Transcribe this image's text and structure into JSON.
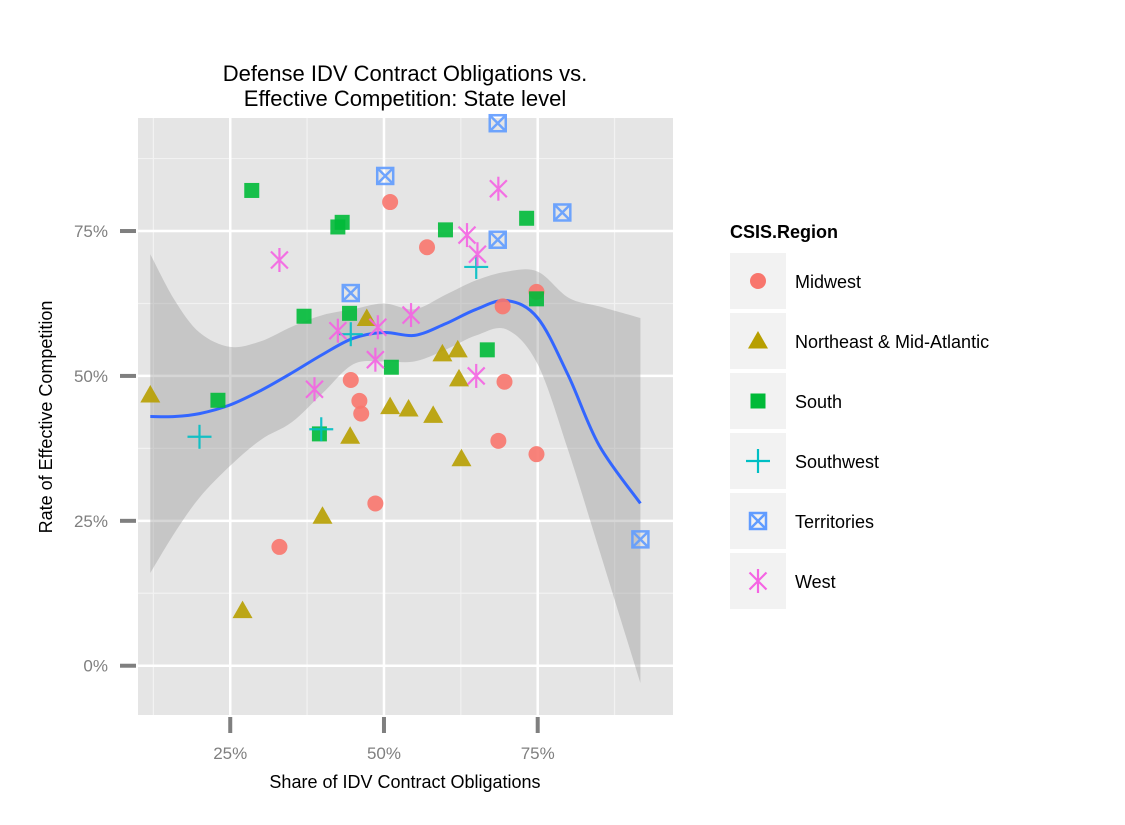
{
  "chart_data": {
    "type": "scatter",
    "title_lines": [
      "Defense IDV Contract Obligations vs.",
      "Effective Competition: State level"
    ],
    "xlabel": "Share of IDV Contract Obligations",
    "ylabel": "Rate of Effective Competition",
    "xlim": [
      0.1,
      0.97
    ],
    "ylim": [
      -0.085,
      0.945
    ],
    "x_ticks": [
      0.25,
      0.5,
      0.75
    ],
    "x_tick_labels": [
      "25%",
      "50%",
      "75%"
    ],
    "y_ticks": [
      0,
      0.25,
      0.5,
      0.75
    ],
    "y_tick_labels": [
      "0%",
      "25%",
      "50%",
      "75%"
    ],
    "grid": true,
    "legend": {
      "title": "CSIS.Region",
      "placement": "right",
      "entries": [
        {
          "name": "Midwest",
          "shape": "circle",
          "color": "#F8766D"
        },
        {
          "name": "Northeast & Mid-Atlantic",
          "shape": "triangle",
          "color": "#B79F00"
        },
        {
          "name": "South",
          "shape": "square",
          "color": "#00BA38"
        },
        {
          "name": "Southwest",
          "shape": "plus",
          "color": "#00BFC4"
        },
        {
          "name": "Territories",
          "shape": "boxx",
          "color": "#619CFF"
        },
        {
          "name": "West",
          "shape": "asterisk",
          "color": "#F564E3"
        }
      ]
    },
    "series": [
      {
        "name": "Midwest",
        "points": [
          [
            0.33,
            0.205
          ],
          [
            0.446,
            0.493
          ],
          [
            0.46,
            0.457
          ],
          [
            0.463,
            0.435
          ],
          [
            0.486,
            0.28
          ],
          [
            0.51,
            0.8
          ],
          [
            0.57,
            0.722
          ],
          [
            0.686,
            0.388
          ],
          [
            0.693,
            0.62
          ],
          [
            0.696,
            0.49
          ],
          [
            0.748,
            0.365
          ],
          [
            0.748,
            0.645
          ]
        ]
      },
      {
        "name": "Northeast & Mid-Atlantic",
        "points": [
          [
            0.12,
            0.467
          ],
          [
            0.27,
            0.095
          ],
          [
            0.4,
            0.258
          ],
          [
            0.445,
            0.396
          ],
          [
            0.472,
            0.599
          ],
          [
            0.51,
            0.447
          ],
          [
            0.54,
            0.443
          ],
          [
            0.58,
            0.432
          ],
          [
            0.595,
            0.538
          ],
          [
            0.62,
            0.545
          ],
          [
            0.622,
            0.495
          ],
          [
            0.626,
            0.357
          ]
        ]
      },
      {
        "name": "South",
        "points": [
          [
            0.23,
            0.458
          ],
          [
            0.285,
            0.82
          ],
          [
            0.37,
            0.603
          ],
          [
            0.395,
            0.4
          ],
          [
            0.425,
            0.757
          ],
          [
            0.432,
            0.765
          ],
          [
            0.444,
            0.608
          ],
          [
            0.512,
            0.515
          ],
          [
            0.6,
            0.752
          ],
          [
            0.668,
            0.545
          ],
          [
            0.732,
            0.772
          ],
          [
            0.748,
            0.633
          ]
        ]
      },
      {
        "name": "Southwest",
        "points": [
          [
            0.2,
            0.395
          ],
          [
            0.398,
            0.408
          ],
          [
            0.446,
            0.572
          ],
          [
            0.65,
            0.688
          ]
        ]
      },
      {
        "name": "Territories",
        "points": [
          [
            0.446,
            0.643
          ],
          [
            0.502,
            0.845
          ],
          [
            0.685,
            0.936
          ],
          [
            0.685,
            0.735
          ],
          [
            0.79,
            0.782
          ],
          [
            0.917,
            0.218
          ]
        ]
      },
      {
        "name": "West",
        "points": [
          [
            0.33,
            0.7
          ],
          [
            0.387,
            0.477
          ],
          [
            0.425,
            0.578
          ],
          [
            0.486,
            0.528
          ],
          [
            0.49,
            0.584
          ],
          [
            0.544,
            0.605
          ],
          [
            0.635,
            0.743
          ],
          [
            0.65,
            0.5
          ],
          [
            0.652,
            0.71
          ],
          [
            0.686,
            0.823
          ]
        ]
      }
    ],
    "smooth": {
      "color": "#3366FF",
      "band_color": "#999999",
      "points": [
        [
          0.12,
          0.43,
          0.16,
          0.71
        ],
        [
          0.16,
          0.43,
          0.23,
          0.63
        ],
        [
          0.2,
          0.435,
          0.29,
          0.575
        ],
        [
          0.25,
          0.45,
          0.345,
          0.55
        ],
        [
          0.3,
          0.475,
          0.39,
          0.56
        ],
        [
          0.35,
          0.505,
          0.42,
          0.585
        ],
        [
          0.4,
          0.537,
          0.47,
          0.605
        ],
        [
          0.45,
          0.565,
          0.52,
          0.615
        ],
        [
          0.5,
          0.575,
          0.525,
          0.625
        ],
        [
          0.55,
          0.57,
          0.525,
          0.615
        ],
        [
          0.6,
          0.59,
          0.545,
          0.64
        ],
        [
          0.65,
          0.615,
          0.57,
          0.665
        ],
        [
          0.7,
          0.63,
          0.58,
          0.68
        ],
        [
          0.75,
          0.6,
          0.52,
          0.68
        ],
        [
          0.8,
          0.5,
          0.37,
          0.635
        ],
        [
          0.85,
          0.38,
          0.2,
          0.62
        ],
        [
          0.917,
          0.28,
          -0.03,
          0.6
        ]
      ]
    }
  }
}
